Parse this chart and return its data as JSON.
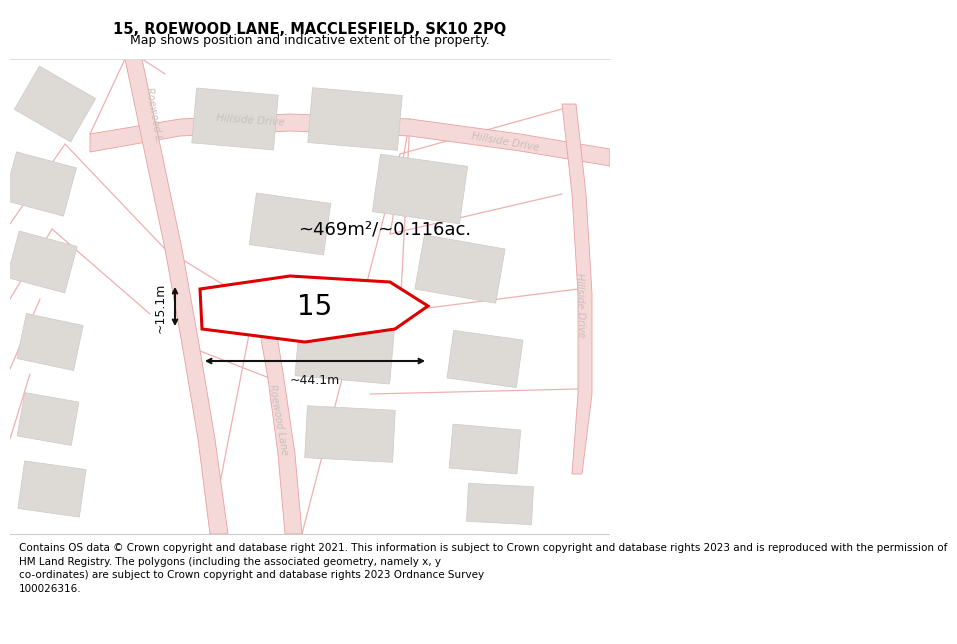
{
  "title": "15, ROEWOOD LANE, MACCLESFIELD, SK10 2PQ",
  "subtitle": "Map shows position and indicative extent of the property.",
  "footer_line1": "Contains OS data © Crown copyright and database right 2021. This information is subject to Crown copyright and database rights 2023 and is reproduced with the permission of",
  "footer_line2": "HM Land Registry. The polygons (including the associated geometry, namely x, y",
  "footer_line3": "co-ordinates) are subject to Crown copyright and database rights 2023 Ordnance Survey",
  "footer_line4": "100026316.",
  "footer_full": "Contains OS data © Crown copyright and database right 2021. This information is subject to Crown copyright and database rights 2023 and is reproduced with the permission of\nHM Land Registry. The polygons (including the associated geometry, namely x, y\nco-ordinates) are subject to Crown copyright and database rights 2023 Ordnance Survey\n100026316.",
  "area_label": "~469m²/~0.116ac.",
  "width_label": "~44.1m",
  "height_label": "~15.1m",
  "number_label": "15",
  "bg_color": "#f2f0ed",
  "road_fill": "#f5d8d8",
  "road_edge": "#e8a0a0",
  "building_fill": "#dddad6",
  "building_edge": "#ccc9c5",
  "road_label_color": "#c8c0bc",
  "plot_edge_color": "#dd0000",
  "dim_color": "#111111",
  "title_fontsize": 10.5,
  "subtitle_fontsize": 9,
  "footer_fontsize": 7.5,
  "area_fontsize": 13,
  "number_fontsize": 20,
  "dim_fontsize": 9,
  "road_label_fontsize": 7.5
}
